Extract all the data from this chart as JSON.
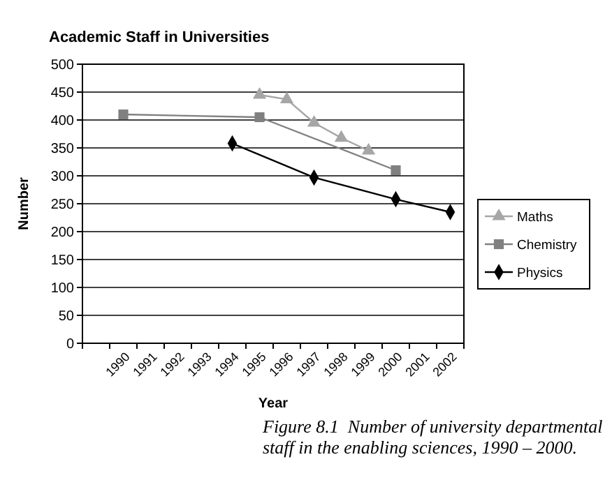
{
  "chart_data": {
    "type": "line",
    "title": "Academic Staff in Universities",
    "xlabel": "Year",
    "ylabel": "Number",
    "categories": [
      null,
      "1990",
      "1991",
      "1992",
      "1993",
      "1994",
      "1995",
      "1996",
      "1997",
      "1998",
      "1999",
      "2000",
      "2001",
      "2002"
    ],
    "series": [
      {
        "name": "Maths",
        "color": "#a6a6a6",
        "marker": "triangle",
        "values": [
          null,
          null,
          null,
          null,
          null,
          null,
          445,
          437,
          395,
          368,
          345,
          null,
          null,
          null
        ]
      },
      {
        "name": "Chemistry",
        "color": "#808080",
        "marker": "square",
        "values": [
          null,
          410,
          null,
          null,
          null,
          null,
          405,
          null,
          null,
          null,
          null,
          310,
          null,
          null
        ]
      },
      {
        "name": "Physics",
        "color": "#000000",
        "marker": "diamond",
        "values": [
          null,
          null,
          null,
          null,
          null,
          358,
          null,
          null,
          297,
          null,
          null,
          258,
          null,
          235
        ]
      }
    ],
    "ylim": [
      0,
      500
    ],
    "yticks": [
      0,
      50,
      100,
      150,
      200,
      250,
      300,
      350,
      400,
      450,
      500
    ],
    "grid": "y",
    "legend": "right",
    "annotations": [
      "Figure 8.1  Number of university departmental staff in the enabling sciences, 1990 – 2000."
    ]
  }
}
